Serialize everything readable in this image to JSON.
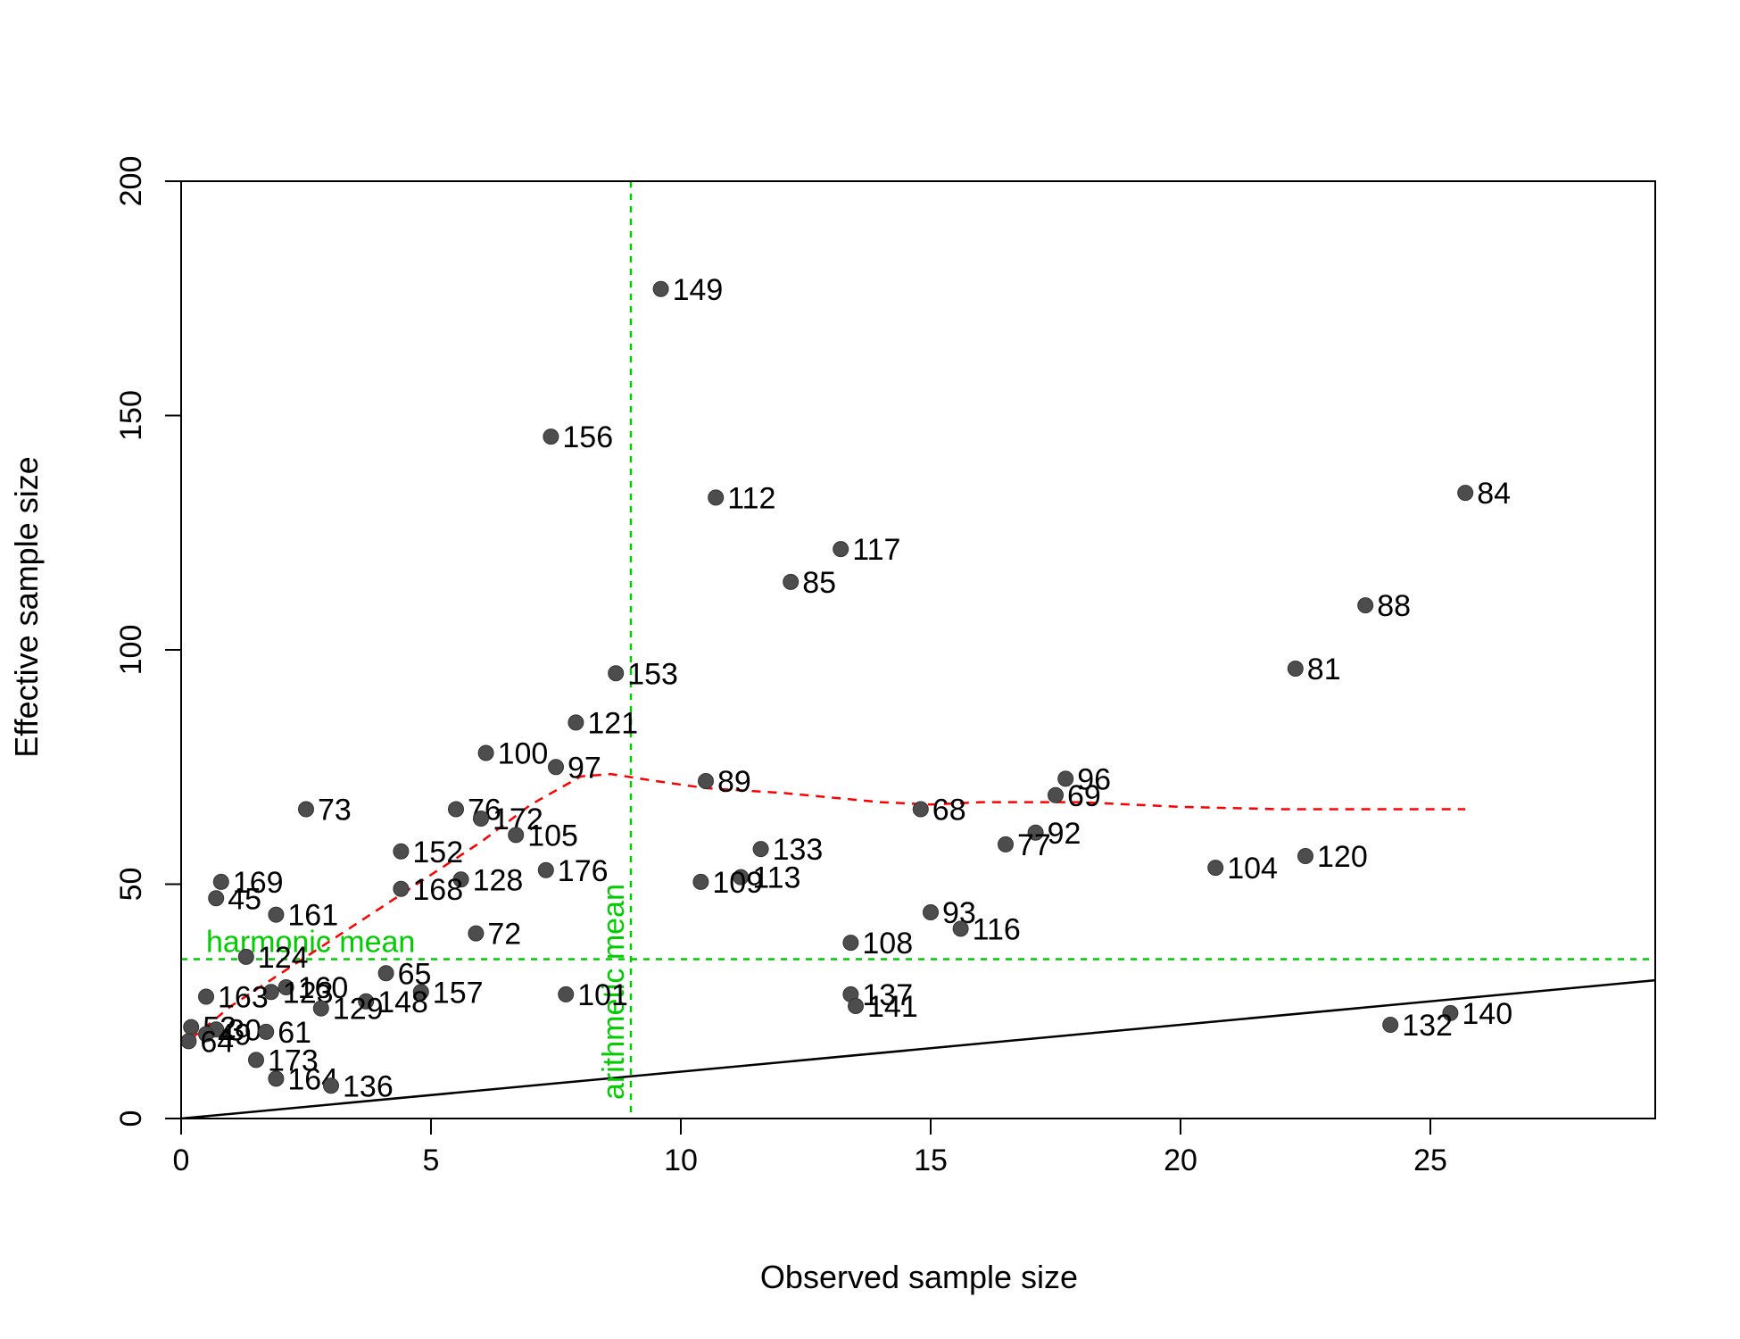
{
  "chart_data": {
    "type": "scatter",
    "title": "",
    "xlabel": "Observed sample size",
    "ylabel": "Effective sample size",
    "xlim": [
      0,
      29.5
    ],
    "ylim": [
      0,
      200
    ],
    "xticks": [
      0,
      5,
      10,
      15,
      20,
      25
    ],
    "yticks": [
      0,
      50,
      100,
      150,
      200
    ],
    "grid": false,
    "colors": {
      "points": "#4d4d4d",
      "reference_lines": "#00cc00",
      "smooth": "#ff0000",
      "identity": "#000000"
    },
    "points": [
      {
        "label": "149",
        "x": 9.6,
        "y": 177
      },
      {
        "label": "156",
        "x": 7.4,
        "y": 145.5
      },
      {
        "label": "112",
        "x": 10.7,
        "y": 132.5
      },
      {
        "label": "84",
        "x": 25.7,
        "y": 133.5
      },
      {
        "label": "117",
        "x": 13.2,
        "y": 121.5
      },
      {
        "label": "85",
        "x": 12.2,
        "y": 114.5
      },
      {
        "label": "88",
        "x": 23.7,
        "y": 109.5
      },
      {
        "label": "153",
        "x": 8.7,
        "y": 95
      },
      {
        "label": "81",
        "x": 22.3,
        "y": 96
      },
      {
        "label": "121",
        "x": 7.9,
        "y": 84.5
      },
      {
        "label": "100",
        "x": 6.1,
        "y": 78
      },
      {
        "label": "97",
        "x": 7.5,
        "y": 75
      },
      {
        "label": "89",
        "x": 10.5,
        "y": 72
      },
      {
        "label": "96",
        "x": 17.7,
        "y": 72.5
      },
      {
        "label": "69",
        "x": 17.5,
        "y": 69
      },
      {
        "label": "73",
        "x": 2.5,
        "y": 66
      },
      {
        "label": "76",
        "x": 5.5,
        "y": 66
      },
      {
        "label": "172",
        "x": 6.0,
        "y": 64
      },
      {
        "label": "68",
        "x": 14.8,
        "y": 66
      },
      {
        "label": "92",
        "x": 17.1,
        "y": 61
      },
      {
        "label": "105",
        "x": 6.7,
        "y": 60.5
      },
      {
        "label": "77",
        "x": 16.5,
        "y": 58.5
      },
      {
        "label": "133",
        "x": 11.6,
        "y": 57.5
      },
      {
        "label": "152",
        "x": 4.4,
        "y": 57
      },
      {
        "label": "120",
        "x": 22.5,
        "y": 56
      },
      {
        "label": "104",
        "x": 20.7,
        "y": 53.5
      },
      {
        "label": "176",
        "x": 7.3,
        "y": 53
      },
      {
        "label": "113",
        "x": 11.2,
        "y": 51.5
      },
      {
        "label": "128",
        "x": 5.6,
        "y": 51
      },
      {
        "label": "169",
        "x": 0.8,
        "y": 50.5
      },
      {
        "label": "109",
        "x": 10.4,
        "y": 50.5
      },
      {
        "label": "168",
        "x": 4.4,
        "y": 49
      },
      {
        "label": "45",
        "x": 0.7,
        "y": 47
      },
      {
        "label": "161",
        "x": 1.9,
        "y": 43.5
      },
      {
        "label": "93",
        "x": 15.0,
        "y": 44
      },
      {
        "label": "116",
        "x": 15.6,
        "y": 40.5
      },
      {
        "label": "72",
        "x": 5.9,
        "y": 39.5
      },
      {
        "label": "108",
        "x": 13.4,
        "y": 37.5
      },
      {
        "label": "124",
        "x": 1.3,
        "y": 34.5
      },
      {
        "label": "65",
        "x": 4.1,
        "y": 31
      },
      {
        "label": "160",
        "x": 2.1,
        "y": 28
      },
      {
        "label": "123",
        "x": 1.8,
        "y": 27
      },
      {
        "label": "157",
        "x": 4.8,
        "y": 27
      },
      {
        "label": "101",
        "x": 7.7,
        "y": 26.5
      },
      {
        "label": "137",
        "x": 13.4,
        "y": 26.5
      },
      {
        "label": "163",
        "x": 0.5,
        "y": 26
      },
      {
        "label": "148",
        "x": 3.7,
        "y": 25
      },
      {
        "label": "129",
        "x": 2.8,
        "y": 23.5
      },
      {
        "label": "141",
        "x": 13.5,
        "y": 24
      },
      {
        "label": "140",
        "x": 25.4,
        "y": 22.5
      },
      {
        "label": "132",
        "x": 24.2,
        "y": 20
      },
      {
        "label": "52",
        "x": 0.2,
        "y": 19.5
      },
      {
        "label": "30",
        "x": 0.7,
        "y": 19
      },
      {
        "label": "49",
        "x": 0.5,
        "y": 18
      },
      {
        "label": "61",
        "x": 1.7,
        "y": 18.5
      },
      {
        "label": "64",
        "x": 0.15,
        "y": 16.5
      },
      {
        "label": "173",
        "x": 1.5,
        "y": 12.5
      },
      {
        "label": "164",
        "x": 1.9,
        "y": 8.5
      },
      {
        "label": "136",
        "x": 3.0,
        "y": 7
      }
    ],
    "harmonic_mean": {
      "label": "harmonic mean",
      "value": 34
    },
    "arithmetic_mean": {
      "label": "arithmetic mean",
      "value": 9.0
    },
    "identity_line": {
      "x": [
        0,
        29.5
      ],
      "y": [
        0,
        29.5
      ]
    },
    "smooth_line": {
      "x": [
        0.2,
        1,
        2,
        3,
        4,
        5,
        6,
        7,
        8,
        8.6,
        9.5,
        10.5,
        12,
        14,
        15,
        16,
        18,
        20,
        22,
        24,
        25.7
      ],
      "y": [
        17,
        24,
        31,
        38,
        45,
        52,
        59,
        67,
        73,
        73.5,
        72,
        70.5,
        69.5,
        67.5,
        67,
        67.5,
        67.5,
        66.5,
        66,
        66,
        66
      ]
    }
  }
}
